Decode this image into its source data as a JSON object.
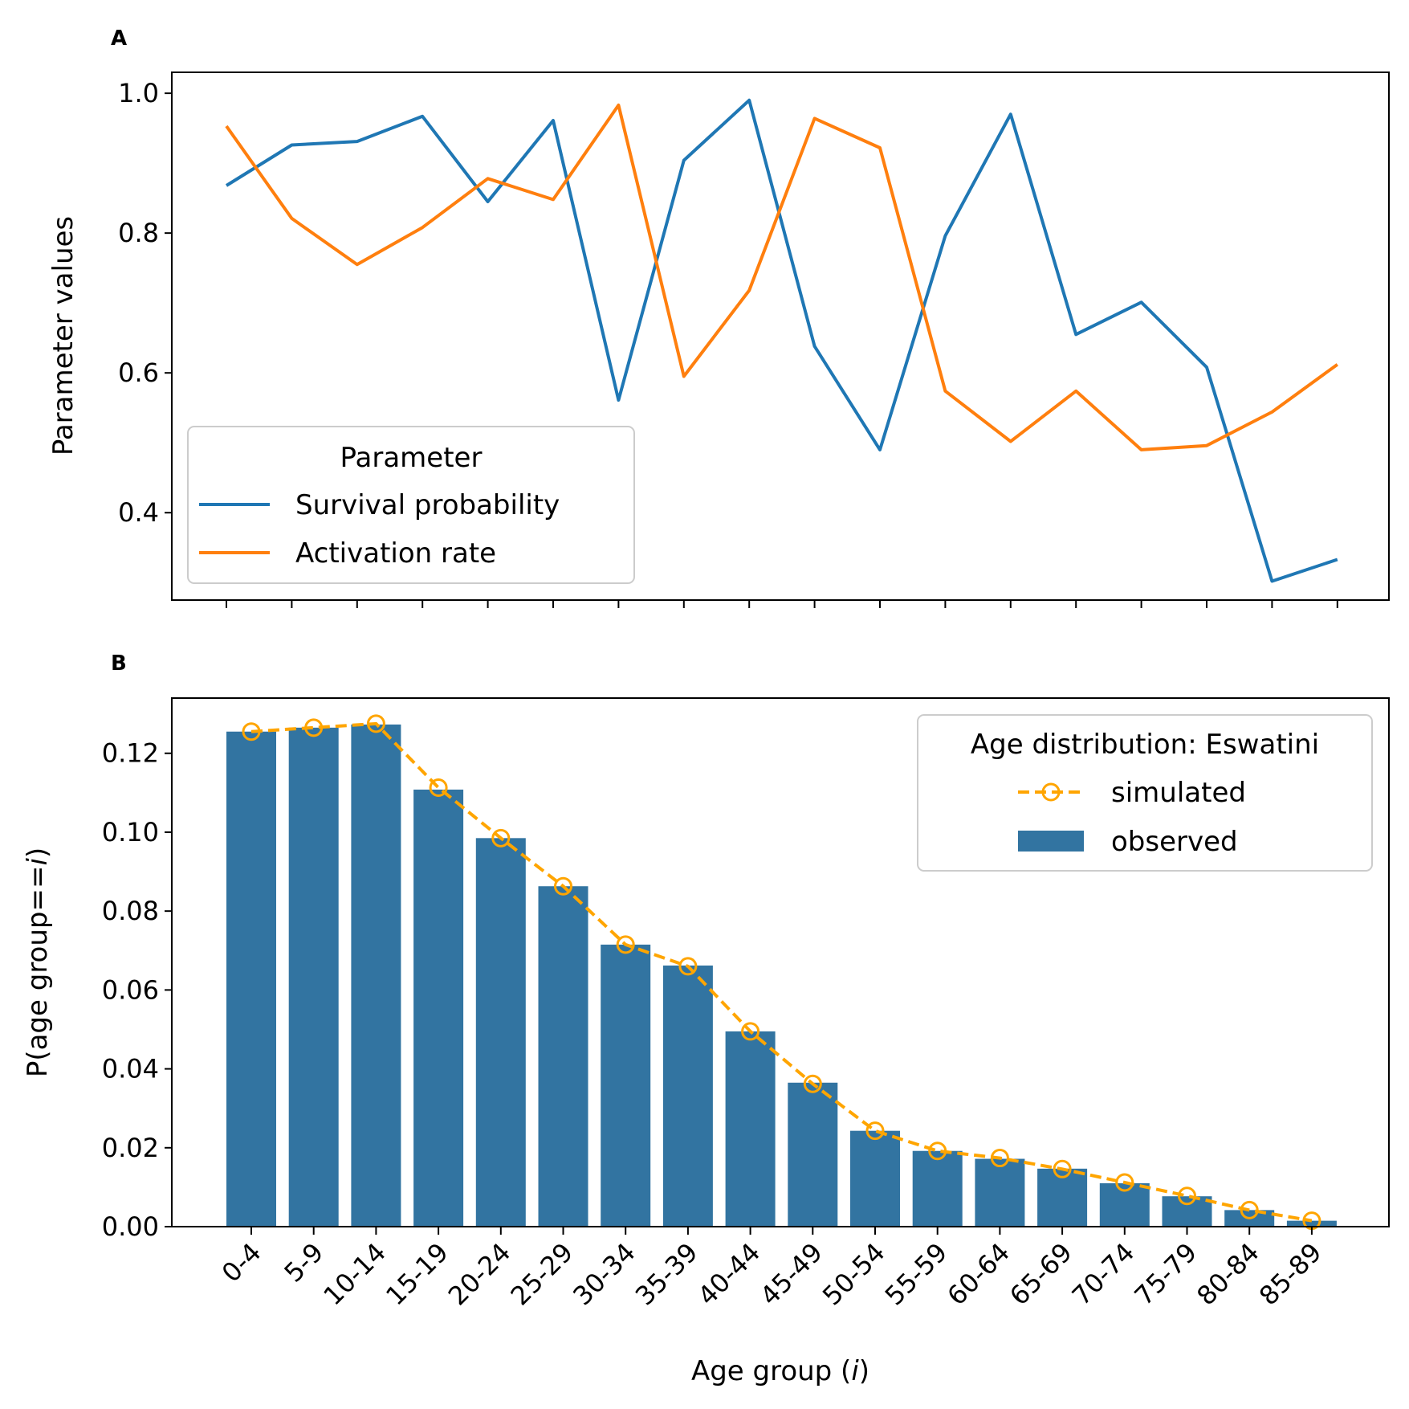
{
  "chart_data": [
    {
      "panel": "A",
      "type": "line",
      "title": "",
      "xlabel": "",
      "ylabel": "Parameter values",
      "ylim": [
        0.275,
        1.03
      ],
      "yticks": [
        "0.4",
        "0.6",
        "0.8",
        "1.0"
      ],
      "x_count": 18,
      "grid": false,
      "legend": {
        "title": "Parameter",
        "placement": "lower-left",
        "entries": [
          "Survival probability",
          "Activation rate"
        ]
      },
      "series": [
        {
          "name": "Survival probability",
          "color": "#1f77b4",
          "values": [
            0.868,
            0.926,
            0.931,
            0.967,
            0.845,
            0.961,
            0.561,
            0.904,
            0.99,
            0.638,
            0.49,
            0.796,
            0.97,
            0.655,
            0.701,
            0.608,
            0.302,
            0.333
          ]
        },
        {
          "name": "Activation rate",
          "color": "#ff7f0e",
          "values": [
            0.953,
            0.821,
            0.755,
            0.808,
            0.878,
            0.848,
            0.983,
            0.595,
            0.718,
            0.964,
            0.922,
            0.574,
            0.502,
            0.574,
            0.49,
            0.496,
            0.544,
            0.612
          ]
        }
      ]
    },
    {
      "panel": "B",
      "type": "bar",
      "title": "",
      "xlabel": "Age group",
      "xlabel_var": "i",
      "ylabel_prefix": "P(age group==",
      "ylabel_var": "i",
      "ylabel_suffix": ")",
      "ylim": [
        0,
        0.134
      ],
      "yticks": [
        "0.00",
        "0.02",
        "0.04",
        "0.06",
        "0.08",
        "0.10",
        "0.12"
      ],
      "grid": false,
      "categories": [
        "0-4",
        "5-9",
        "10-14",
        "15-19",
        "20-24",
        "25-29",
        "30-34",
        "35-39",
        "40-44",
        "45-49",
        "50-54",
        "55-59",
        "60-64",
        "65-69",
        "70-74",
        "75-79",
        "80-84",
        "85-89"
      ],
      "legend": {
        "title": "Age distribution: Eswatini",
        "placement": "upper-right",
        "entries": [
          "simulated",
          "observed"
        ]
      },
      "series": [
        {
          "name": "observed",
          "kind": "bar",
          "color": "#3274a1",
          "values": [
            0.1255,
            0.1265,
            0.1273,
            0.1108,
            0.0985,
            0.0863,
            0.0715,
            0.0662,
            0.0495,
            0.0365,
            0.0243,
            0.0192,
            0.0172,
            0.0147,
            0.011,
            0.0077,
            0.0042,
            0.0015
          ]
        },
        {
          "name": "simulated",
          "kind": "line",
          "color": "#ffa500",
          "values": [
            0.1255,
            0.1265,
            0.1275,
            0.1113,
            0.0985,
            0.0863,
            0.0715,
            0.066,
            0.0495,
            0.0362,
            0.0243,
            0.0192,
            0.0174,
            0.0146,
            0.0112,
            0.0078,
            0.0042,
            0.0015
          ]
        }
      ]
    }
  ]
}
